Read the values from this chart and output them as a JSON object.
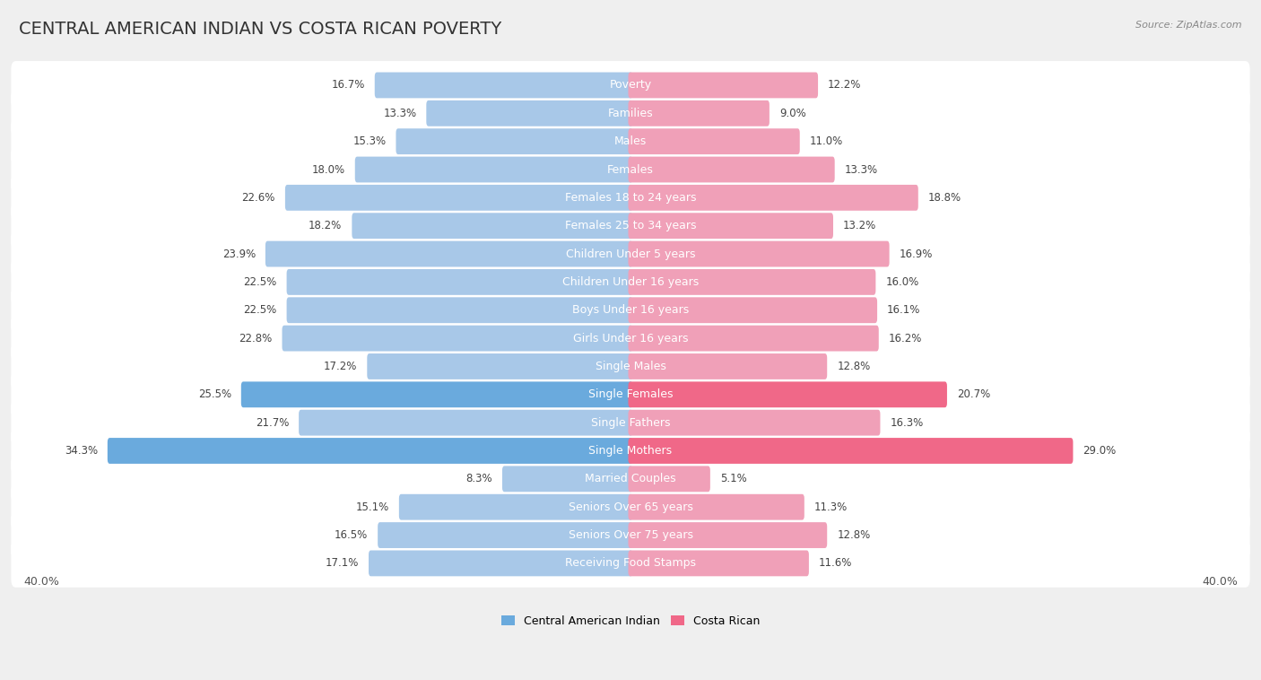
{
  "title": "CENTRAL AMERICAN INDIAN VS COSTA RICAN POVERTY",
  "source": "Source: ZipAtlas.com",
  "categories": [
    "Poverty",
    "Families",
    "Males",
    "Females",
    "Females 18 to 24 years",
    "Females 25 to 34 years",
    "Children Under 5 years",
    "Children Under 16 years",
    "Boys Under 16 years",
    "Girls Under 16 years",
    "Single Males",
    "Single Females",
    "Single Fathers",
    "Single Mothers",
    "Married Couples",
    "Seniors Over 65 years",
    "Seniors Over 75 years",
    "Receiving Food Stamps"
  ],
  "left_values": [
    16.7,
    13.3,
    15.3,
    18.0,
    22.6,
    18.2,
    23.9,
    22.5,
    22.5,
    22.8,
    17.2,
    25.5,
    21.7,
    34.3,
    8.3,
    15.1,
    16.5,
    17.1
  ],
  "right_values": [
    12.2,
    9.0,
    11.0,
    13.3,
    18.8,
    13.2,
    16.9,
    16.0,
    16.1,
    16.2,
    12.8,
    20.7,
    16.3,
    29.0,
    5.1,
    11.3,
    12.8,
    11.6
  ],
  "left_color": "#a8c8e8",
  "right_color": "#f0a0b8",
  "left_highlight_color": "#6aaadd",
  "right_highlight_color": "#f06888",
  "highlight_rows": [
    11,
    13
  ],
  "axis_limit": 40.0,
  "background_color": "#efefef",
  "bar_row_bg_color": "#ffffff",
  "left_label": "Central American Indian",
  "right_label": "Costa Rican",
  "title_fontsize": 14,
  "label_fontsize": 9,
  "value_fontsize": 8.5,
  "axis_fontsize": 9
}
